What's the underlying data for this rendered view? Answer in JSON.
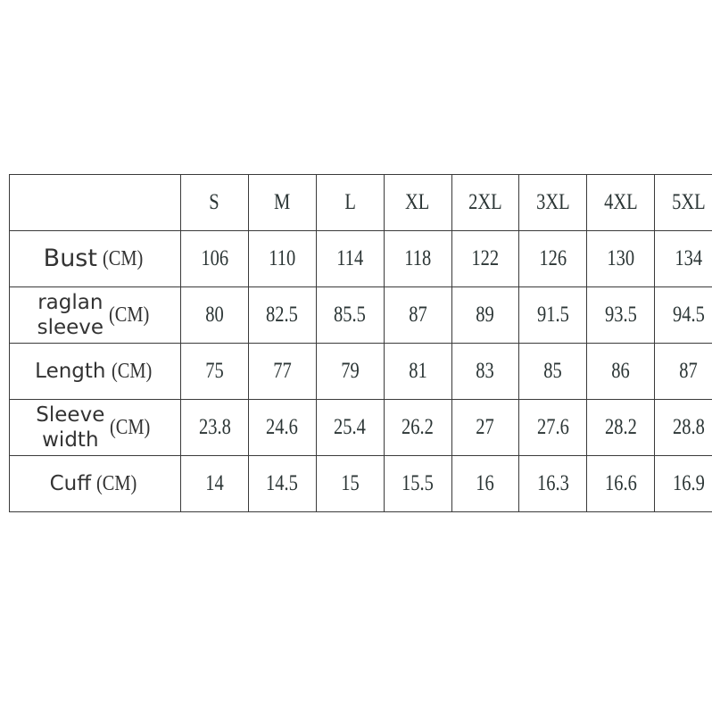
{
  "table": {
    "headers": [
      "",
      "S",
      "M",
      "L",
      "XL",
      "2XL",
      "3XL",
      "4XL",
      "5XL"
    ],
    "rows": [
      {
        "name": "Bust",
        "name_lines": [
          "Bust"
        ],
        "unit": "(CM)",
        "values": [
          "106",
          "110",
          "114",
          "118",
          "122",
          "126",
          "130",
          "134"
        ]
      },
      {
        "name": "raglan sleeve",
        "name_lines": [
          "raglan",
          "sleeve"
        ],
        "unit": "(CM)",
        "values": [
          "80",
          "82.5",
          "85.5",
          "87",
          "89",
          "91.5",
          "93.5",
          "94.5"
        ]
      },
      {
        "name": "Length",
        "name_lines": [
          "Length"
        ],
        "unit": "(CM)",
        "values": [
          "75",
          "77",
          "79",
          "81",
          "83",
          "85",
          "86",
          "87"
        ]
      },
      {
        "name": "Sleeve width",
        "name_lines": [
          "Sleeve",
          "width"
        ],
        "unit": "(CM)",
        "values": [
          "23.8",
          "24.6",
          "25.4",
          "26.2",
          "27",
          "27.6",
          "28.2",
          "28.8"
        ]
      },
      {
        "name": "Cuff",
        "name_lines": [
          "Cuff"
        ],
        "unit": "(CM)",
        "values": [
          "14",
          "14.5",
          "15",
          "15.5",
          "16",
          "16.3",
          "16.6",
          "16.9"
        ]
      }
    ]
  }
}
